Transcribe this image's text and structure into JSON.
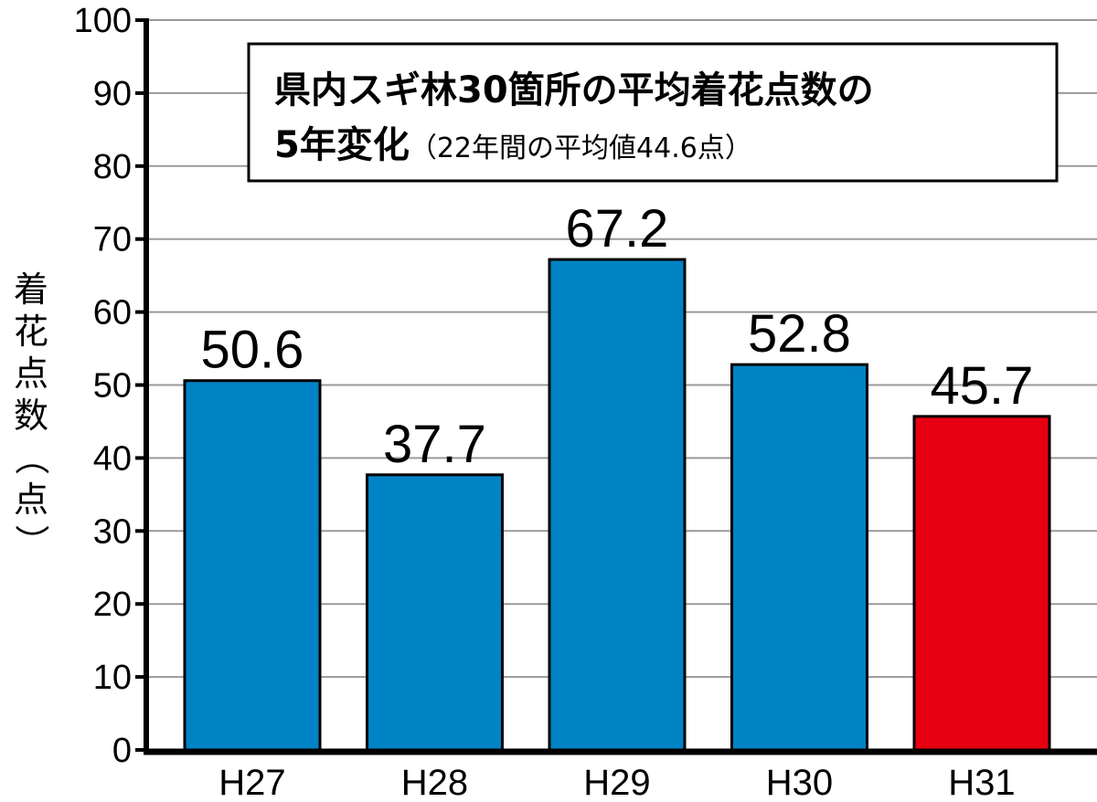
{
  "chart_data": {
    "type": "bar",
    "title": "県内スギ林30箇所の平均着花点数の",
    "title_line2": "5年変化",
    "subtitle": "（22年間の平均値44.6点）",
    "ylabel": "着花点数（点）",
    "xlabel": "",
    "ylim": [
      0,
      100
    ],
    "yticks": [
      0,
      10,
      20,
      30,
      40,
      50,
      60,
      70,
      80,
      90,
      100
    ],
    "categories": [
      "H27",
      "H28",
      "H29",
      "H30",
      "H31"
    ],
    "values": [
      50.6,
      37.7,
      67.2,
      52.8,
      45.7
    ],
    "value_labels": [
      "50.6",
      "37.7",
      "67.2",
      "52.8",
      "45.7"
    ],
    "grid": true,
    "colors": [
      "#0083c4",
      "#0083c4",
      "#0083c4",
      "#0083c4",
      "#e60012"
    ]
  }
}
